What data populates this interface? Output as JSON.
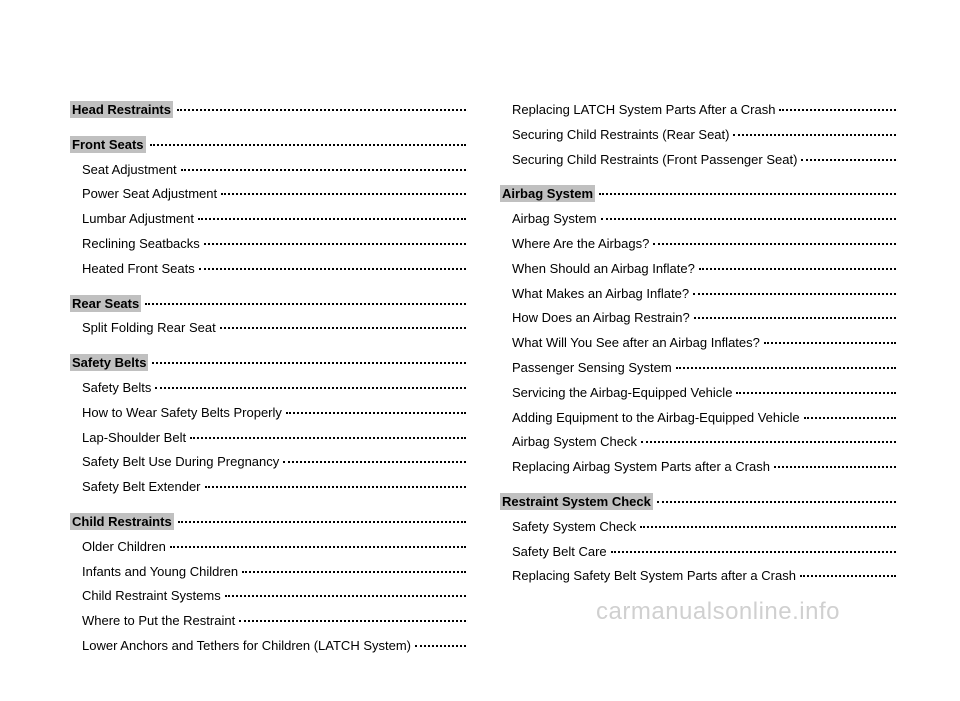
{
  "left_column": [
    {
      "label": "Head Restraints",
      "page": "",
      "bold": true
    },
    {
      "label": "Front Seats",
      "page": "",
      "bold": true
    },
    {
      "label": "Seat Adjustment",
      "page": "",
      "bold": false,
      "sub": true
    },
    {
      "label": "Power Seat Adjustment",
      "page": "",
      "bold": false,
      "sub": true
    },
    {
      "label": "Lumbar Adjustment",
      "page": "",
      "bold": false,
      "sub": true
    },
    {
      "label": "Reclining Seatbacks",
      "page": "",
      "bold": false,
      "sub": true
    },
    {
      "label": "Heated Front Seats",
      "page": "",
      "bold": false,
      "sub": true
    },
    {
      "label": "Rear Seats",
      "page": "",
      "bold": true
    },
    {
      "label": "Split Folding Rear Seat",
      "page": "",
      "bold": false,
      "sub": true
    },
    {
      "label": "Safety Belts",
      "page": "",
      "bold": true
    },
    {
      "label": "Safety Belts",
      "page": "",
      "bold": false,
      "sub": true
    },
    {
      "label": "How to Wear Safety Belts Properly",
      "page": "",
      "bold": false,
      "sub": true
    },
    {
      "label": "Lap-Shoulder Belt",
      "page": "",
      "bold": false,
      "sub": true
    },
    {
      "label": "Safety Belt Use During Pregnancy",
      "page": "",
      "bold": false,
      "sub": true
    },
    {
      "label": "Safety Belt Extender",
      "page": "",
      "bold": false,
      "sub": true
    },
    {
      "label": "Child Restraints",
      "page": "",
      "bold": true
    },
    {
      "label": "Older Children",
      "page": "",
      "bold": false,
      "sub": true
    },
    {
      "label": "Infants and Young Children",
      "page": "",
      "bold": false,
      "sub": true
    },
    {
      "label": "Child Restraint Systems",
      "page": "",
      "bold": false,
      "sub": true
    },
    {
      "label": "Where to Put the Restraint",
      "page": "",
      "bold": false,
      "sub": true
    },
    {
      "label": "Lower Anchors and Tethers for Children (LATCH System)",
      "page": "",
      "bold": false,
      "sub": true
    }
  ],
  "right_column": [
    {
      "label": "Replacing LATCH System Parts After a Crash",
      "page": "",
      "bold": false,
      "sub": true
    },
    {
      "label": "Securing Child Restraints (Rear Seat)",
      "page": "",
      "bold": false,
      "sub": true
    },
    {
      "label": "Securing Child Restraints (Front Passenger Seat)",
      "page": "",
      "bold": false,
      "sub": true
    },
    {
      "label": "Airbag System",
      "page": "",
      "bold": true
    },
    {
      "label": "Airbag System",
      "page": "",
      "bold": false,
      "sub": true
    },
    {
      "label": "Where Are the Airbags?",
      "page": "",
      "bold": false,
      "sub": true
    },
    {
      "label": "When Should an Airbag Inflate?",
      "page": "",
      "bold": false,
      "sub": true
    },
    {
      "label": "What Makes an Airbag Inflate?",
      "page": "",
      "bold": false,
      "sub": true
    },
    {
      "label": "How Does an Airbag Restrain?",
      "page": "",
      "bold": false,
      "sub": true
    },
    {
      "label": "What Will You See after an Airbag Inflates?",
      "page": "",
      "bold": false,
      "sub": true
    },
    {
      "label": "Passenger Sensing System",
      "page": "",
      "bold": false,
      "sub": true
    },
    {
      "label": "Servicing the Airbag-Equipped Vehicle",
      "page": "",
      "bold": false,
      "sub": true
    },
    {
      "label": "Adding Equipment to the Airbag-Equipped Vehicle",
      "page": "",
      "bold": false,
      "sub": true
    },
    {
      "label": "Airbag System Check",
      "page": "",
      "bold": false,
      "sub": true
    },
    {
      "label": "Replacing Airbag System Parts after a Crash",
      "page": "",
      "bold": false,
      "sub": true
    },
    {
      "label": "Restraint System Check",
      "page": "",
      "bold": true
    },
    {
      "label": "Safety System Check",
      "page": "",
      "bold": false,
      "sub": true
    },
    {
      "label": "Safety Belt Care",
      "page": "",
      "bold": false,
      "sub": true
    },
    {
      "label": "Replacing Safety Belt System Parts after a Crash",
      "page": "",
      "bold": false,
      "sub": true
    }
  ],
  "watermark": "carmanualsonline.info"
}
